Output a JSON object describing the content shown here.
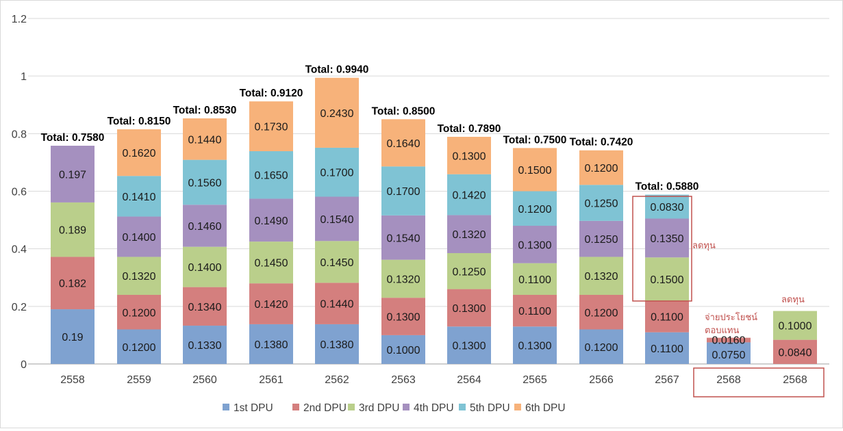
{
  "chart_data": {
    "type": "bar",
    "stacked": true,
    "title": "",
    "xlabel": "",
    "ylabel": "",
    "ylim": [
      0,
      1.2
    ],
    "yticks": [
      "0",
      "0.2",
      "0.4",
      "0.6",
      "0.8",
      "1",
      "1.2"
    ],
    "ytick_values": [
      0,
      0.2,
      0.4,
      0.6,
      0.8,
      1.0,
      1.2
    ],
    "grid": true,
    "legend_position": "bottom",
    "categories": [
      "2558",
      "2559",
      "2560",
      "2561",
      "2562",
      "2563",
      "2564",
      "2565",
      "2566",
      "2567",
      "2568",
      "2568"
    ],
    "series": [
      {
        "name": "1st DPU",
        "color": "#7fa2d0",
        "values": [
          0.19,
          0.12,
          0.133,
          0.138,
          0.138,
          0.1,
          0.13,
          0.13,
          0.12,
          0.11,
          0.075,
          null
        ],
        "labels": [
          "0.19",
          "0.1200",
          "0.1330",
          "0.1380",
          "0.1380",
          "0.1000",
          "0.1300",
          "0.1300",
          "0.1200",
          "0.1100",
          "0.0750",
          null
        ]
      },
      {
        "name": "2nd DPU",
        "color": "#d47f7e",
        "values": [
          0.182,
          0.12,
          0.134,
          0.142,
          0.144,
          0.13,
          0.13,
          0.11,
          0.12,
          0.11,
          0.016,
          0.084
        ],
        "labels": [
          "0.182",
          "0.1200",
          "0.1340",
          "0.1420",
          "0.1440",
          "0.1300",
          "0.1300",
          "0.1100",
          "0.1200",
          "0.1100",
          "0.0160",
          "0.0840"
        ]
      },
      {
        "name": "3rd DPU",
        "color": "#bacf8b",
        "values": [
          0.189,
          0.132,
          0.14,
          0.145,
          0.145,
          0.132,
          0.125,
          0.11,
          0.132,
          0.15,
          null,
          0.1
        ],
        "labels": [
          "0.189",
          "0.1320",
          "0.1400",
          "0.1450",
          "0.1450",
          "0.1320",
          "0.1250",
          "0.1100",
          "0.1320",
          "0.1500",
          null,
          "0.1000"
        ]
      },
      {
        "name": "4th DPU",
        "color": "#a590bf",
        "values": [
          0.197,
          0.14,
          0.146,
          0.149,
          0.154,
          0.154,
          0.132,
          0.13,
          0.125,
          0.135,
          null,
          null
        ],
        "labels": [
          "0.197",
          "0.1400",
          "0.1460",
          "0.1490",
          "0.1540",
          "0.1540",
          "0.1320",
          "0.1300",
          "0.1250",
          "0.1350",
          null,
          null
        ]
      },
      {
        "name": "5th DPU",
        "color": "#7fc3d4",
        "values": [
          null,
          0.141,
          0.156,
          0.165,
          0.17,
          0.17,
          0.142,
          0.12,
          0.125,
          0.083,
          null,
          null
        ],
        "labels": [
          null,
          "0.1410",
          "0.1560",
          "0.1650",
          "0.1700",
          "0.1700",
          "0.1420",
          "0.1200",
          "0.1250",
          "0.0830",
          null,
          null
        ]
      },
      {
        "name": "6th DPU",
        "color": "#f7b27a",
        "values": [
          null,
          0.162,
          0.144,
          0.173,
          0.243,
          0.164,
          0.13,
          0.15,
          0.12,
          null,
          null,
          null
        ],
        "labels": [
          null,
          "0.1620",
          "0.1440",
          "0.1730",
          "0.2430",
          "0.1640",
          "0.1300",
          "0.1500",
          "0.1200",
          null,
          null,
          null
        ]
      }
    ],
    "totals": [
      "Total: 0.7580",
      "Total: 0.8150",
      "Total: 0.8530",
      "Total: 0.9120",
      "Total: 0.9940",
      "Total: 0.8500",
      "Total: 0.7890",
      "Total: 0.7500",
      "Total: 0.7420",
      "Total: 0.5880",
      null,
      null
    ],
    "total_values": [
      0.758,
      0.815,
      0.853,
      0.912,
      0.994,
      0.85,
      0.789,
      0.75,
      0.742,
      0.588,
      null,
      null
    ],
    "annotations": [
      {
        "text": "ลดทุน",
        "target": "2567 (3rd–5th DPU)",
        "boxed": true
      },
      {
        "text": "จ่ายประโยชน์",
        "target": "2568 (first)"
      },
      {
        "text": "ตอบแทน",
        "target": "2568 (first)"
      },
      {
        "text": "ลดทุน",
        "target": "2568 (second)"
      },
      {
        "text": "",
        "target": "2568 x-axis labels",
        "boxed": true
      }
    ],
    "annotation_color": "#c0504d",
    "gridline_color": "#d9d9d9"
  }
}
